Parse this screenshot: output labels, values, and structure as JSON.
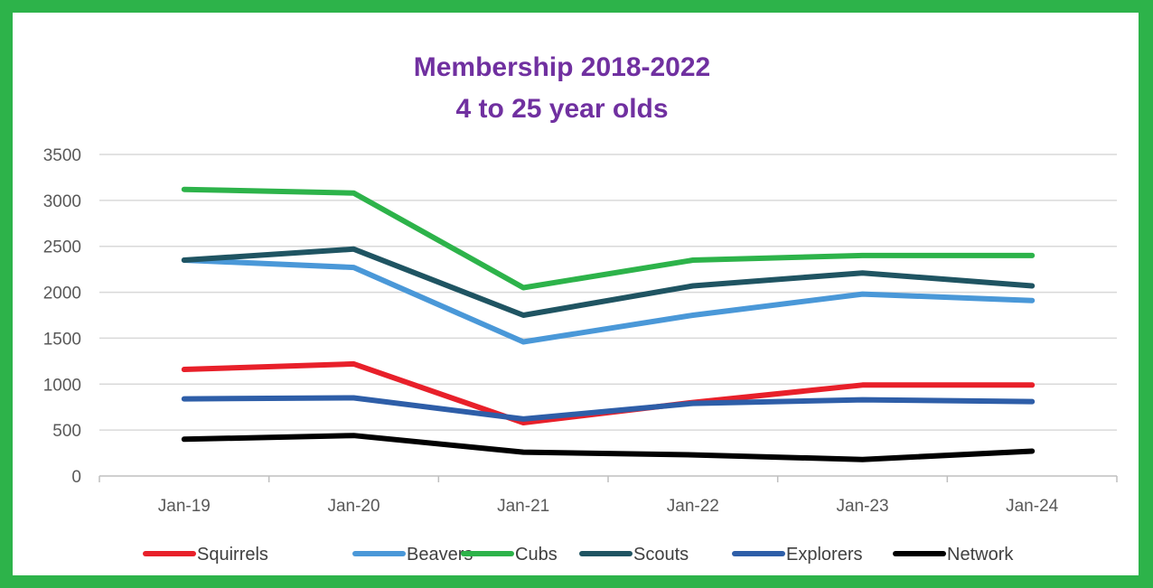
{
  "chart_data": {
    "type": "line",
    "title": [
      "Membership 2018-2022",
      "4 to 25 year olds"
    ],
    "xlabel": "",
    "ylabel": "",
    "categories": [
      "Jan-19",
      "Jan-20",
      "Jan-21",
      "Jan-22",
      "Jan-23",
      "Jan-24"
    ],
    "ylim": [
      0,
      3500
    ],
    "yticks": [
      0,
      500,
      1000,
      1500,
      2000,
      2500,
      3000,
      3500
    ],
    "grid": true,
    "legend": "bottom",
    "series": [
      {
        "name": "Squirrels",
        "color": "#e8202a",
        "values": [
          1160,
          1220,
          580,
          800,
          990,
          990
        ]
      },
      {
        "name": "Beavers",
        "color": "#4a98d8",
        "values": [
          2350,
          2270,
          1460,
          1750,
          1980,
          1910
        ]
      },
      {
        "name": "Cubs",
        "color": "#2db34a",
        "values": [
          3120,
          3080,
          2050,
          2350,
          2400,
          2400
        ]
      },
      {
        "name": "Scouts",
        "color": "#1f5462",
        "values": [
          2350,
          2470,
          1750,
          2070,
          2210,
          2070
        ]
      },
      {
        "name": "Explorers",
        "color": "#2e5ea8",
        "values": [
          840,
          850,
          620,
          790,
          830,
          810
        ]
      },
      {
        "name": "Network",
        "color": "#000000",
        "values": [
          400,
          440,
          260,
          230,
          180,
          270
        ]
      }
    ]
  }
}
